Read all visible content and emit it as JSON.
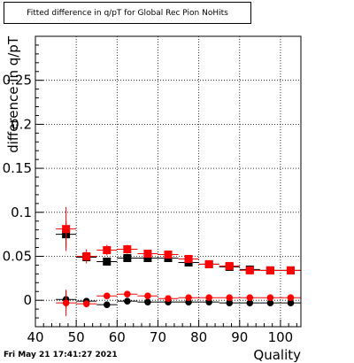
{
  "title": "Fitted difference in q/pT for Global Rec Pion NoHits",
  "date_stamp": "Fri May 21 17:41:27 2021",
  "chart_data": {
    "type": "scatter",
    "title": "Fitted difference in q/pT for Global Rec Pion NoHits",
    "xlabel": "Quality",
    "ylabel": "difference in q/pT",
    "xlim": [
      40,
      105
    ],
    "ylim": [
      -0.03,
      0.3
    ],
    "x_ticks": [
      "40",
      "50",
      "60",
      "70",
      "80",
      "90",
      "100"
    ],
    "y_ticks": [
      "0",
      "0.05",
      "0.1",
      "0.15",
      "0.2",
      "0.25"
    ],
    "grid": true,
    "colors": {
      "black": "#000000",
      "red": "#ff0000"
    },
    "series": [
      {
        "marker": "square",
        "color": "#000000",
        "points": [
          [
            47.5,
            0.075
          ],
          [
            52.5,
            0.049
          ],
          [
            57.5,
            0.044
          ],
          [
            62.5,
            0.048
          ],
          [
            67.5,
            0.048
          ],
          [
            72.5,
            0.048
          ],
          [
            77.5,
            0.043
          ],
          [
            82.5,
            0.041
          ],
          [
            87.5,
            0.038
          ],
          [
            92.5,
            0.035
          ],
          [
            97.5,
            0.034
          ],
          [
            102.5,
            0.034
          ]
        ],
        "xerr": [
          2.5,
          2.5,
          2.5,
          2.5,
          2.5,
          2.5,
          2.5,
          2.5,
          2.5,
          2.5,
          2.5,
          2.5
        ],
        "yerr": [
          0.015,
          0.004,
          0.003,
          0.003,
          0.003,
          0.003,
          0.003,
          0.002,
          0.002,
          0.002,
          0.002,
          0.002
        ]
      },
      {
        "marker": "square",
        "color": "#ff0000",
        "points": [
          [
            47.5,
            0.081
          ],
          [
            52.5,
            0.05
          ],
          [
            57.5,
            0.057
          ],
          [
            62.5,
            0.058
          ],
          [
            67.5,
            0.053
          ],
          [
            72.5,
            0.052
          ],
          [
            77.5,
            0.047
          ],
          [
            82.5,
            0.041
          ],
          [
            87.5,
            0.039
          ],
          [
            92.5,
            0.034
          ],
          [
            97.5,
            0.034
          ],
          [
            102.5,
            0.034
          ]
        ],
        "xerr": [
          2.5,
          2.5,
          2.5,
          2.5,
          2.5,
          2.5,
          2.5,
          2.5,
          2.5,
          2.5,
          2.5,
          2.5
        ],
        "yerr": [
          0.025,
          0.008,
          0.006,
          0.005,
          0.004,
          0.004,
          0.004,
          0.003,
          0.003,
          0.003,
          0.003,
          0.003
        ]
      },
      {
        "marker": "circle",
        "color": "#000000",
        "points": [
          [
            47.5,
            0.001
          ],
          [
            52.5,
            -0.001
          ],
          [
            57.5,
            -0.005
          ],
          [
            62.5,
            -0.001
          ],
          [
            67.5,
            -0.002
          ],
          [
            72.5,
            -0.002
          ],
          [
            77.5,
            -0.002
          ],
          [
            82.5,
            -0.002
          ],
          [
            87.5,
            -0.003
          ],
          [
            92.5,
            -0.003
          ],
          [
            97.5,
            -0.003
          ],
          [
            102.5,
            -0.003
          ]
        ],
        "xerr": [
          2.5,
          2.5,
          2.5,
          2.5,
          2.5,
          2.5,
          2.5,
          2.5,
          2.5,
          2.5,
          2.5,
          2.5
        ],
        "yerr": [
          0.01,
          0.003,
          0.002,
          0.002,
          0.002,
          0.002,
          0.002,
          0.002,
          0.002,
          0.002,
          0.002,
          0.002
        ]
      },
      {
        "marker": "circle",
        "color": "#ff0000",
        "points": [
          [
            47.5,
            -0.003
          ],
          [
            52.5,
            -0.004
          ],
          [
            57.5,
            0.005
          ],
          [
            62.5,
            0.007
          ],
          [
            67.5,
            0.005
          ],
          [
            72.5,
            0.002
          ],
          [
            77.5,
            0.003
          ],
          [
            82.5,
            0.003
          ],
          [
            87.5,
            0.003
          ],
          [
            92.5,
            0.003
          ],
          [
            97.5,
            0.003
          ],
          [
            102.5,
            0.003
          ]
        ],
        "xerr": [
          2.5,
          2.5,
          2.5,
          2.5,
          2.5,
          2.5,
          2.5,
          2.5,
          2.5,
          2.5,
          2.5,
          2.5
        ],
        "yerr": [
          0.015,
          0.004,
          0.003,
          0.003,
          0.003,
          0.003,
          0.003,
          0.003,
          0.003,
          0.003,
          0.003,
          0.003
        ]
      }
    ]
  }
}
